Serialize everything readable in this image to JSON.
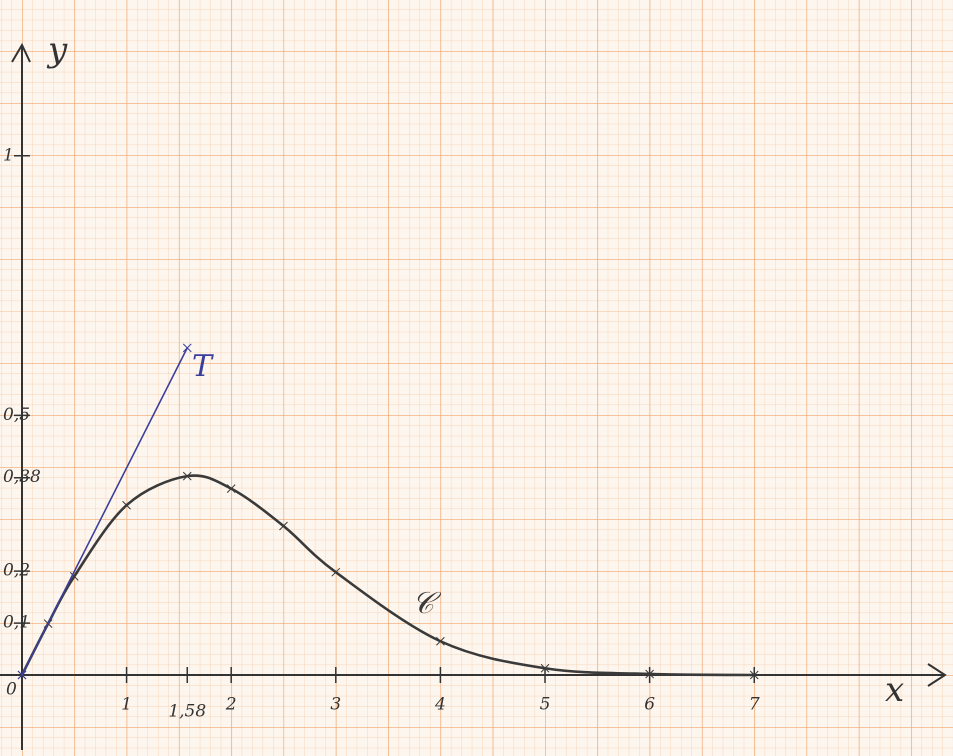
{
  "chart_data": {
    "type": "line",
    "x_label": "x",
    "y_label": "y",
    "xlim": [
      -0.21,
      8.9
    ],
    "ylim": [
      -0.156,
      1.3
    ],
    "xticks": [
      0,
      1,
      {
        "value": 1.58,
        "label": "1,58"
      },
      2,
      3,
      4,
      5,
      6,
      7
    ],
    "yticks": [
      {
        "value": 0.1,
        "label": "0,1"
      },
      {
        "value": 0.2,
        "label": "0,2"
      },
      {
        "value": 0.38,
        "label": "0,38"
      },
      {
        "value": 0.5,
        "label": "0,5"
      },
      1
    ],
    "series": [
      {
        "name": "𝒞",
        "color": "#3a3a3a",
        "x": [
          0,
          0.25,
          0.5,
          1,
          1.58,
          2,
          2.5,
          3,
          4,
          5,
          6,
          7
        ],
        "values": [
          0,
          0.099,
          0.19,
          0.327,
          0.383,
          0.359,
          0.287,
          0.198,
          0.065,
          0.013,
          0.002,
          0
        ]
      },
      {
        "name": "T",
        "color": "#3b3f9c",
        "x": [
          0,
          1.58
        ],
        "values": [
          0,
          0.63
        ]
      }
    ]
  }
}
